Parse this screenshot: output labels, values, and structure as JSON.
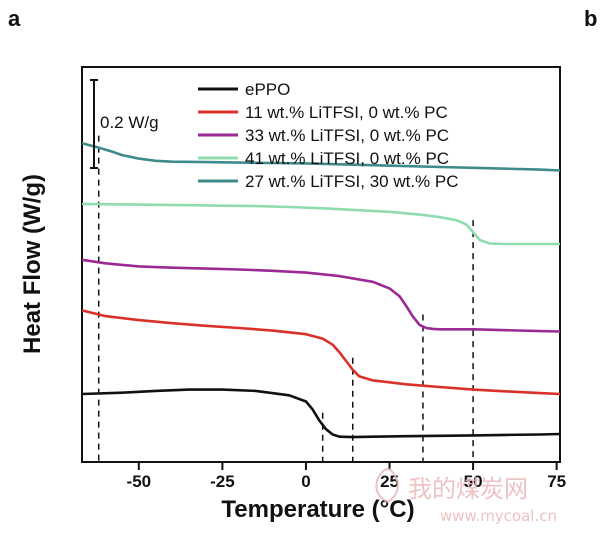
{
  "panel_labels": {
    "left": "a",
    "right": "b"
  },
  "watermark": {
    "text_cn": "我的煤炭网",
    "url": "www.mycoal.cn"
  },
  "colors": {
    "ePPO": "#111111",
    "s11": "#d9312a",
    "s33": "#9b2a96",
    "s41": "#8fdcae",
    "s27": "#3f8a8a",
    "axis": "#111111"
  },
  "chart_data": {
    "type": "line",
    "xlabel": "Temperature (°C)",
    "ylabel": "Heat Flow (W/g)",
    "xlim": [
      -67,
      76
    ],
    "xticks": [
      -50,
      -25,
      0,
      25,
      50,
      75
    ],
    "xtick_labels": [
      "-50",
      "-25",
      "0",
      "25",
      "50",
      "75"
    ],
    "scale_bar_label": "0.2 W/g",
    "y_ticks_shown": false,
    "legend_position": "top-right",
    "series": [
      {
        "name": "ePPO",
        "color_key": "ePPO",
        "x": [
          -67,
          -55,
          -45,
          -35,
          -25,
          -15,
          -5,
          0,
          2,
          4,
          6,
          8,
          10,
          14,
          20,
          30,
          40,
          50,
          60,
          70,
          76
        ],
        "y": [
          0.0,
          0.003,
          0.007,
          0.01,
          0.01,
          0.007,
          -0.003,
          -0.017,
          -0.035,
          -0.06,
          -0.08,
          -0.092,
          -0.097,
          -0.098,
          -0.097,
          -0.096,
          -0.095,
          -0.094,
          -0.093,
          -0.092,
          -0.091
        ],
        "tg_x": 5
      },
      {
        "name": "11 wt.% LiTFSI, 0 wt.% PC",
        "color_key": "s11",
        "x": [
          -67,
          -60,
          -50,
          -40,
          -30,
          -20,
          -10,
          0,
          5,
          8,
          10,
          12,
          14,
          16,
          20,
          30,
          40,
          50,
          60,
          70,
          76
        ],
        "y": [
          0.19,
          0.177,
          0.168,
          0.161,
          0.155,
          0.15,
          0.144,
          0.136,
          0.126,
          0.112,
          0.095,
          0.075,
          0.055,
          0.04,
          0.031,
          0.022,
          0.016,
          0.01,
          0.006,
          0.002,
          0.0
        ],
        "tg_x": 14
      },
      {
        "name": "33 wt.% LiTFSI, 0 wt.% PC",
        "color_key": "s33",
        "x": [
          -67,
          -60,
          -50,
          -40,
          -30,
          -20,
          -10,
          0,
          10,
          20,
          25,
          28,
          30,
          32,
          34,
          36,
          38,
          40,
          45,
          50,
          60,
          70,
          76
        ],
        "y": [
          0.305,
          0.297,
          0.29,
          0.287,
          0.285,
          0.283,
          0.28,
          0.276,
          0.268,
          0.255,
          0.24,
          0.222,
          0.2,
          0.176,
          0.157,
          0.15,
          0.148,
          0.147,
          0.147,
          0.147,
          0.145,
          0.143,
          0.142
        ],
        "tg_x": 35
      },
      {
        "name": "41 wt.% LiTFSI, 0 wt.% PC",
        "color_key": "s41",
        "x": [
          -67,
          -55,
          -45,
          -35,
          -25,
          -15,
          -5,
          5,
          15,
          25,
          35,
          40,
          45,
          48,
          50,
          52,
          55,
          60,
          70,
          76
        ],
        "y": [
          0.432,
          0.431,
          0.43,
          0.429,
          0.428,
          0.427,
          0.425,
          0.422,
          0.418,
          0.414,
          0.407,
          0.402,
          0.395,
          0.385,
          0.368,
          0.35,
          0.342,
          0.341,
          0.341,
          0.341
        ],
        "tg_x": 50
      },
      {
        "name": "27 wt.% LiTFSI, 30 wt.% PC",
        "color_key": "s27",
        "x": [
          -67,
          -62,
          -58,
          -55,
          -50,
          -45,
          -40,
          -30,
          -20,
          -10,
          0,
          10,
          20,
          30,
          40,
          50,
          60,
          70,
          76
        ],
        "y": [
          0.57,
          0.56,
          0.551,
          0.543,
          0.535,
          0.53,
          0.528,
          0.527,
          0.526,
          0.525,
          0.524,
          0.522,
          0.52,
          0.518,
          0.516,
          0.514,
          0.512,
          0.51,
          0.508
        ],
        "tg_x": -62
      }
    ]
  }
}
